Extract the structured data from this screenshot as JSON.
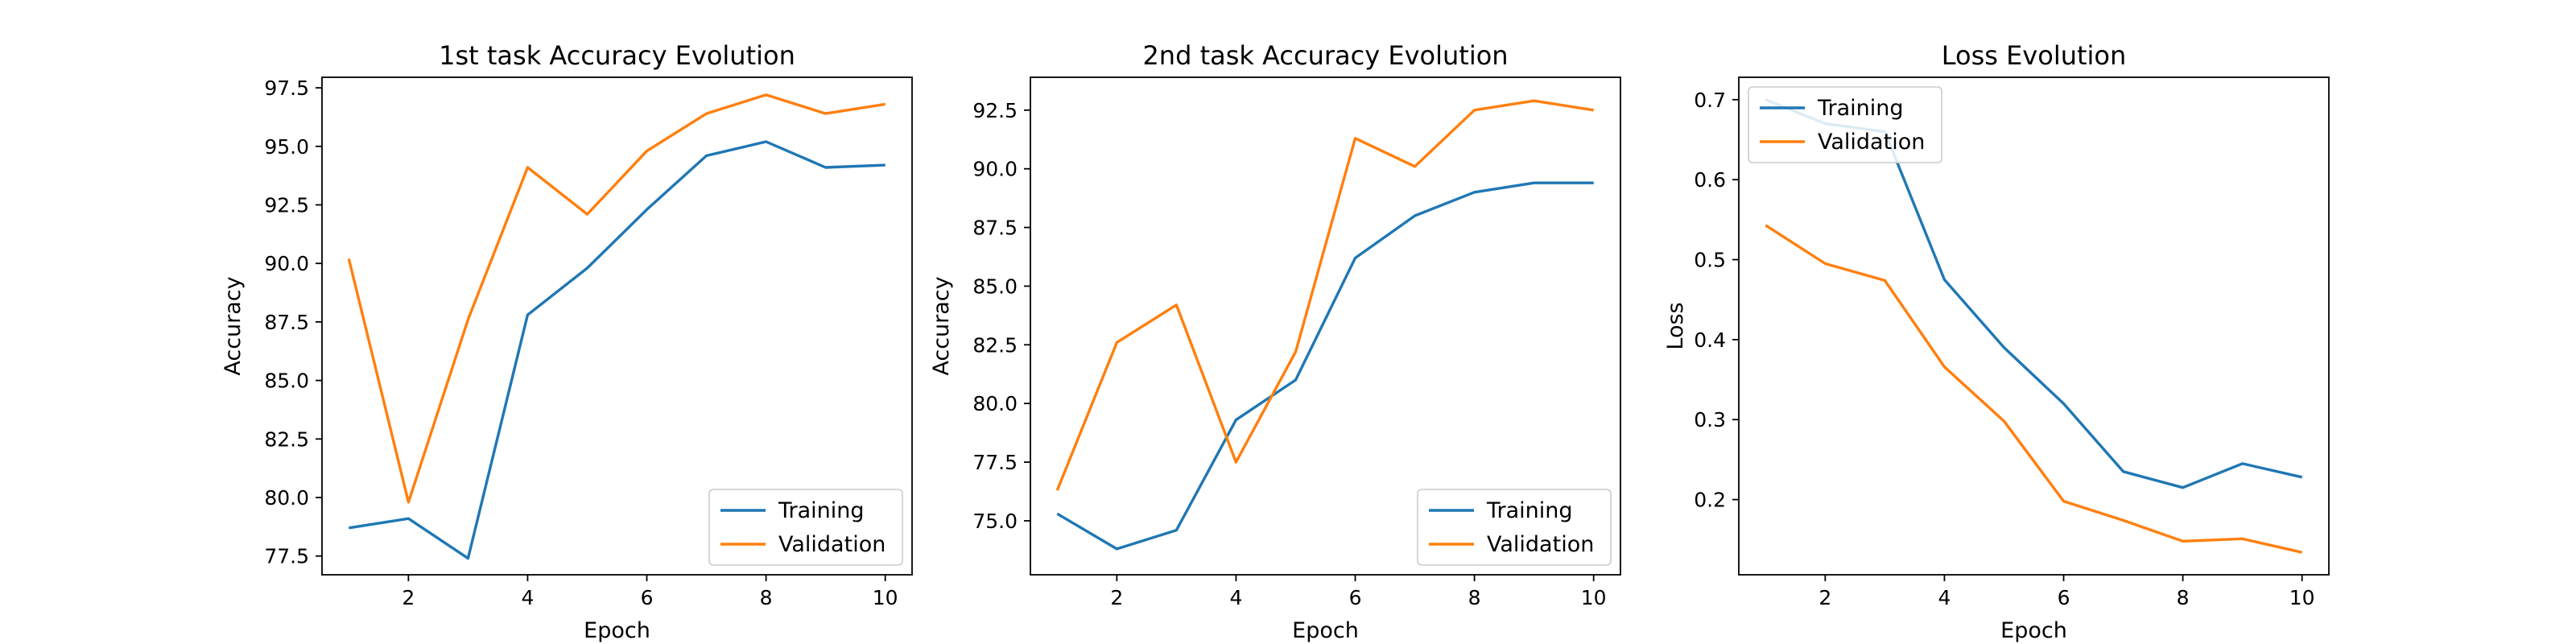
{
  "chart_data": [
    {
      "type": "line",
      "title": "1st task Accuracy Evolution",
      "xlabel": "Epoch",
      "ylabel": "Accuracy",
      "x": [
        1,
        2,
        3,
        4,
        5,
        6,
        7,
        8,
        9,
        10
      ],
      "xlim": [
        0.55,
        10.45
      ],
      "ylim": [
        76.7,
        97.95
      ],
      "xticks": [
        2,
        4,
        6,
        8,
        10
      ],
      "yticks": [
        77.5,
        80.0,
        82.5,
        85.0,
        87.5,
        90.0,
        92.5,
        95.0,
        97.5
      ],
      "legend": "lower right",
      "grid": false,
      "series": [
        {
          "name": "Training",
          "color": "#1f77b4",
          "values": [
            78.7,
            79.1,
            77.4,
            87.8,
            89.8,
            92.3,
            94.6,
            95.2,
            94.1,
            94.2
          ]
        },
        {
          "name": "Validation",
          "color": "#ff7f0e",
          "values": [
            90.2,
            79.8,
            87.6,
            94.1,
            92.1,
            94.8,
            96.4,
            97.2,
            96.4,
            96.8
          ]
        }
      ]
    },
    {
      "type": "line",
      "title": "2nd task Accuracy Evolution",
      "xlabel": "Epoch",
      "ylabel": "Accuracy",
      "x": [
        1,
        2,
        3,
        4,
        5,
        6,
        7,
        8,
        9,
        10
      ],
      "xlim": [
        0.55,
        10.45
      ],
      "ylim": [
        72.7,
        93.9
      ],
      "xticks": [
        2,
        4,
        6,
        8,
        10
      ],
      "yticks": [
        75.0,
        77.5,
        80.0,
        82.5,
        85.0,
        87.5,
        90.0,
        92.5
      ],
      "legend": "lower right",
      "grid": false,
      "series": [
        {
          "name": "Training",
          "color": "#1f77b4",
          "values": [
            75.3,
            73.8,
            74.6,
            79.3,
            81.0,
            86.2,
            88.0,
            89.0,
            89.4,
            89.4
          ]
        },
        {
          "name": "Validation",
          "color": "#ff7f0e",
          "values": [
            76.3,
            82.6,
            84.2,
            77.5,
            82.2,
            91.3,
            90.1,
            92.5,
            92.9,
            92.5
          ]
        }
      ]
    },
    {
      "type": "line",
      "title": "Loss Evolution",
      "xlabel": "Epoch",
      "ylabel": "Loss",
      "x": [
        1,
        2,
        3,
        4,
        5,
        6,
        7,
        8,
        9,
        10
      ],
      "xlim": [
        0.55,
        10.45
      ],
      "ylim": [
        0.106,
        0.728
      ],
      "xticks": [
        2,
        4,
        6,
        8,
        10
      ],
      "yticks": [
        0.2,
        0.3,
        0.4,
        0.5,
        0.6,
        0.7
      ],
      "legend": "upper left",
      "grid": false,
      "series": [
        {
          "name": "Training",
          "color": "#1f77b4",
          "values": [
            0.7,
            0.67,
            0.66,
            0.475,
            0.39,
            0.32,
            0.235,
            0.215,
            0.245,
            0.228
          ]
        },
        {
          "name": "Validation",
          "color": "#ff7f0e",
          "values": [
            0.543,
            0.495,
            0.474,
            0.366,
            0.298,
            0.198,
            0.174,
            0.148,
            0.151,
            0.134
          ]
        }
      ]
    }
  ]
}
